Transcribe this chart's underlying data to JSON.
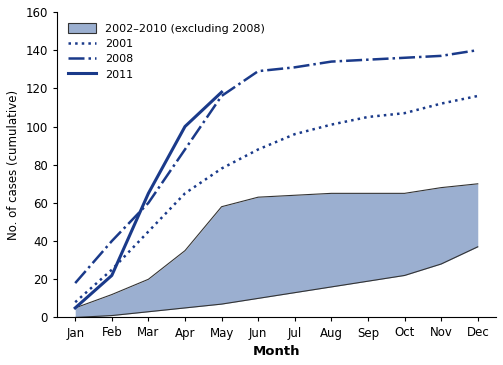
{
  "months": [
    "Jan",
    "Feb",
    "Mar",
    "Apr",
    "May",
    "Jun",
    "Jul",
    "Aug",
    "Sep",
    "Oct",
    "Nov",
    "Dec"
  ],
  "shade_min": [
    0,
    1,
    3,
    5,
    7,
    10,
    13,
    16,
    19,
    22,
    28,
    37
  ],
  "shade_max": [
    5,
    12,
    20,
    35,
    58,
    63,
    64,
    65,
    65,
    65,
    68,
    70
  ],
  "data_2001": [
    8,
    25,
    45,
    65,
    78,
    88,
    96,
    101,
    105,
    107,
    112,
    116
  ],
  "data_2008": [
    18,
    40,
    60,
    88,
    116,
    129,
    131,
    134,
    135,
    136,
    137,
    140
  ],
  "data_2011": [
    5,
    22,
    65,
    100,
    118,
    null,
    null,
    null,
    null,
    null,
    null,
    null
  ],
  "shade_color": "#9bafd0",
  "shade_edge_color": "#333333",
  "line_color": "#1a3a8a",
  "title": "",
  "ylabel": "No. of cases (cumulative)",
  "xlabel": "Month",
  "ylim": [
    0,
    160
  ],
  "yticks": [
    0,
    20,
    40,
    60,
    80,
    100,
    120,
    140,
    160
  ],
  "legend_labels": [
    "2002–2010 (excluding 2008)",
    "2001",
    "2008",
    "2011"
  ],
  "bg_color": "#ffffff"
}
